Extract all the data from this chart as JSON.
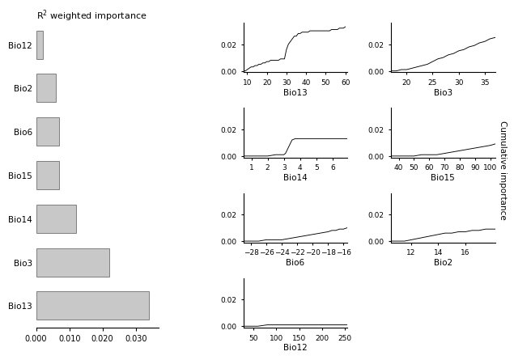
{
  "bar_labels": [
    "Bio13",
    "Bio3",
    "Bio14",
    "Bio15",
    "Bio6",
    "Bio2",
    "Bio12"
  ],
  "bar_values": [
    0.034,
    0.022,
    0.012,
    0.007,
    0.007,
    0.006,
    0.002
  ],
  "bar_color": "#c8c8c8",
  "bar_title": "R$^{2}$ weighted importance",
  "bar_xlim": [
    0,
    0.037
  ],
  "bar_xticks": [
    0.0,
    0.01,
    0.02,
    0.03
  ],
  "bar_xticklabels": [
    "0.000",
    "0.010",
    "0.020",
    "0.030"
  ],
  "cumulative_ylabel": "Cumulative importance",
  "panels": [
    {
      "label": "Bio13",
      "xlim": [
        8,
        61
      ],
      "xticks": [
        10,
        20,
        30,
        40,
        50,
        60
      ],
      "ylim": [
        -0.001,
        0.036
      ],
      "yticks": [
        0.0,
        0.02
      ],
      "x": [
        8,
        9,
        10,
        11,
        12,
        13,
        14,
        15,
        16,
        17,
        18,
        19,
        20,
        21,
        22,
        23,
        24,
        25,
        26,
        27,
        28,
        29,
        30,
        31,
        32,
        33,
        34,
        35,
        36,
        37,
        38,
        39,
        40,
        41,
        42,
        43,
        44,
        45,
        46,
        47,
        48,
        49,
        50,
        51,
        52,
        53,
        54,
        55,
        56,
        57,
        58,
        59,
        60
      ],
      "y": [
        0.0,
        0.0,
        0.001,
        0.002,
        0.003,
        0.003,
        0.004,
        0.004,
        0.005,
        0.005,
        0.006,
        0.006,
        0.007,
        0.007,
        0.008,
        0.008,
        0.008,
        0.008,
        0.008,
        0.009,
        0.009,
        0.009,
        0.016,
        0.02,
        0.022,
        0.024,
        0.026,
        0.026,
        0.028,
        0.028,
        0.029,
        0.029,
        0.029,
        0.029,
        0.03,
        0.03,
        0.03,
        0.03,
        0.03,
        0.03,
        0.03,
        0.03,
        0.03,
        0.03,
        0.03,
        0.031,
        0.031,
        0.031,
        0.031,
        0.032,
        0.032,
        0.032,
        0.033
      ]
    },
    {
      "label": "Bio3",
      "xlim": [
        17,
        37
      ],
      "xticks": [
        20,
        25,
        30,
        35
      ],
      "ylim": [
        -0.001,
        0.036
      ],
      "yticks": [
        0.0,
        0.02
      ],
      "x": [
        17,
        18,
        19,
        20,
        21,
        22,
        23,
        24,
        25,
        26,
        27,
        28,
        29,
        30,
        31,
        32,
        33,
        34,
        35,
        36,
        37
      ],
      "y": [
        0.0,
        0.0,
        0.001,
        0.001,
        0.002,
        0.003,
        0.004,
        0.005,
        0.007,
        0.009,
        0.01,
        0.012,
        0.013,
        0.015,
        0.016,
        0.018,
        0.019,
        0.021,
        0.022,
        0.024,
        0.025
      ]
    },
    {
      "label": "Bio14",
      "xlim": [
        0.5,
        6.9
      ],
      "xticks": [
        1,
        2,
        3,
        4,
        5,
        6
      ],
      "ylim": [
        -0.001,
        0.036
      ],
      "yticks": [
        0.0,
        0.02
      ],
      "x": [
        0.5,
        1.0,
        1.5,
        2.0,
        2.5,
        3.0,
        3.1,
        3.3,
        3.5,
        3.7,
        4.0,
        4.5,
        5.0,
        5.5,
        6.0,
        6.5,
        6.9
      ],
      "y": [
        0.0,
        0.0,
        0.0,
        0.0,
        0.001,
        0.001,
        0.002,
        0.007,
        0.012,
        0.013,
        0.013,
        0.013,
        0.013,
        0.013,
        0.013,
        0.013,
        0.013
      ]
    },
    {
      "label": "Bio15",
      "xlim": [
        35,
        103
      ],
      "xticks": [
        40,
        50,
        60,
        70,
        80,
        90,
        100
      ],
      "ylim": [
        -0.001,
        0.036
      ],
      "yticks": [
        0.0,
        0.02
      ],
      "x": [
        35,
        40,
        45,
        50,
        55,
        60,
        65,
        70,
        75,
        80,
        85,
        90,
        95,
        100,
        103
      ],
      "y": [
        0.0,
        0.0,
        0.0,
        0.0,
        0.001,
        0.001,
        0.001,
        0.002,
        0.003,
        0.004,
        0.005,
        0.006,
        0.007,
        0.008,
        0.009
      ]
    },
    {
      "label": "Bio6",
      "xlim": [
        -29,
        -15.5
      ],
      "xticks": [
        -28,
        -26,
        -24,
        -22,
        -20,
        -18,
        -16
      ],
      "ylim": [
        -0.001,
        0.036
      ],
      "yticks": [
        0.0,
        0.02
      ],
      "x": [
        -29,
        -28,
        -27,
        -26,
        -25,
        -24,
        -23,
        -22,
        -21,
        -20,
        -19,
        -18,
        -17.5,
        -17,
        -16.5,
        -16,
        -15.5
      ],
      "y": [
        0.0,
        0.0,
        0.0,
        0.001,
        0.001,
        0.001,
        0.002,
        0.003,
        0.004,
        0.005,
        0.006,
        0.007,
        0.008,
        0.008,
        0.009,
        0.009,
        0.01
      ]
    },
    {
      "label": "Bio2",
      "xlim": [
        10.5,
        18.2
      ],
      "xticks": [
        12,
        14,
        16
      ],
      "ylim": [
        -0.001,
        0.036
      ],
      "yticks": [
        0.0,
        0.02
      ],
      "x": [
        10.5,
        11,
        11.5,
        12,
        12.5,
        13,
        13.5,
        14,
        14.5,
        15,
        15.5,
        16,
        16.5,
        17,
        17.5,
        18,
        18.2
      ],
      "y": [
        0.0,
        0.0,
        0.0,
        0.001,
        0.002,
        0.003,
        0.004,
        0.005,
        0.006,
        0.006,
        0.007,
        0.007,
        0.008,
        0.008,
        0.009,
        0.009,
        0.009
      ]
    },
    {
      "label": "Bio12",
      "xlim": [
        28,
        255
      ],
      "xticks": [
        50,
        100,
        150,
        200,
        250
      ],
      "ylim": [
        -0.001,
        0.036
      ],
      "yticks": [
        0.0,
        0.02
      ],
      "x": [
        28,
        40,
        60,
        80,
        100,
        125,
        150,
        175,
        200,
        225,
        250,
        255
      ],
      "y": [
        0.0,
        0.0,
        0.0,
        0.001,
        0.001,
        0.001,
        0.001,
        0.001,
        0.001,
        0.001,
        0.001,
        0.001
      ]
    }
  ]
}
